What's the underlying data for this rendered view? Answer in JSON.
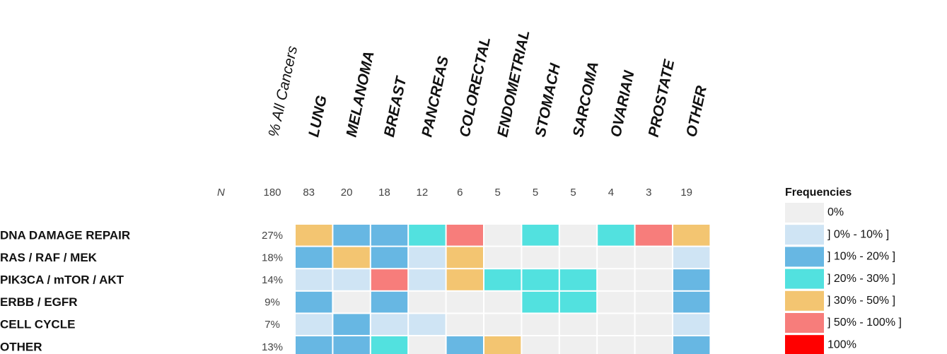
{
  "chart_data": {
    "type": "heatmap",
    "summary_header": "% All Cancers",
    "categories": [
      "LUNG",
      "MELANOMA",
      "BREAST",
      "PANCREAS",
      "COLORECTAL",
      "ENDOMETRIAL",
      "STOMACH",
      "SARCOMA",
      "OVARIAN",
      "PROSTATE",
      "OTHER"
    ],
    "n_label": "N",
    "n_total": 180,
    "n": [
      83,
      20,
      18,
      12,
      6,
      5,
      5,
      5,
      4,
      3,
      19
    ],
    "rows": [
      "DNA DAMAGE REPAIR",
      "RAS / RAF / MEK",
      "PIK3CA / mTOR / AKT",
      "ERBB / EGFR",
      "CELL CYCLE",
      "OTHER"
    ],
    "row_percent": [
      27,
      18,
      14,
      9,
      7,
      13
    ],
    "row_percent_labels": [
      "27%",
      "18%",
      "14%",
      "9%",
      "7%",
      "13%"
    ],
    "levels": [
      [
        4,
        2,
        2,
        3,
        5,
        0,
        3,
        0,
        3,
        5,
        4
      ],
      [
        2,
        4,
        2,
        1,
        4,
        0,
        0,
        0,
        0,
        0,
        1
      ],
      [
        1,
        1,
        5,
        1,
        4,
        3,
        3,
        3,
        0,
        0,
        2
      ],
      [
        2,
        0,
        2,
        0,
        0,
        0,
        3,
        3,
        0,
        0,
        2
      ],
      [
        1,
        2,
        1,
        1,
        0,
        0,
        0,
        0,
        0,
        0,
        1
      ],
      [
        2,
        2,
        3,
        0,
        2,
        4,
        0,
        0,
        0,
        0,
        2
      ]
    ],
    "legend_title": "Frequencies",
    "legend": [
      {
        "label": "0%",
        "color": "#efefef"
      },
      {
        "label": "] 0% - 10% ]",
        "color": "#cfe4f4"
      },
      {
        "label": "] 10% - 20% ]",
        "color": "#67b7e3"
      },
      {
        "label": "] 20% - 30% ]",
        "color": "#52e1df"
      },
      {
        "label": "] 30% - 50% ]",
        "color": "#f3c571"
      },
      {
        "label": "] 50% - 100% ]",
        "color": "#f77d7b"
      },
      {
        "label": "100%",
        "color": "#ff0000"
      }
    ]
  }
}
